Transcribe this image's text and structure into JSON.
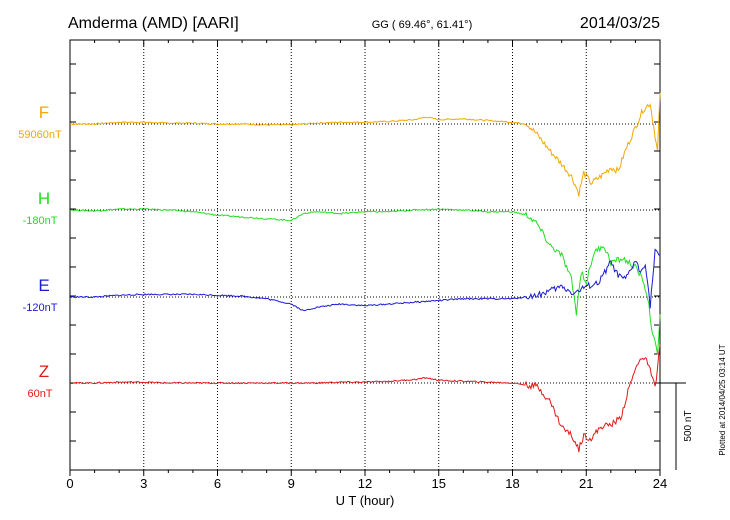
{
  "header": {
    "station": "Amderma (AMD)  [AARI]",
    "coords": "GG ( 69.46°,  61.41°)",
    "date": "2014/03/25"
  },
  "side_note": "Plotted at 2014/04/25 03:14 UT",
  "scale_label": "500 nT",
  "chart_data": {
    "type": "line",
    "xlabel": "U T (hour)",
    "xlim": [
      0,
      24
    ],
    "xticks": [
      0,
      3,
      6,
      9,
      12,
      15,
      18,
      21,
      24
    ],
    "grid": true,
    "series": [
      {
        "name": "F",
        "baseline_label": "59060nT",
        "color": "#f2a900",
        "x": [
          0,
          1,
          2,
          3,
          4,
          5,
          6,
          7,
          8,
          9,
          10,
          11,
          12,
          13,
          14,
          14.5,
          15,
          16,
          17,
          18,
          18.6,
          19,
          19.5,
          20,
          20.4,
          20.7,
          20.9,
          21.2,
          21.6,
          22,
          22.3,
          22.6,
          23,
          23.3,
          23.6,
          23.9,
          24
        ],
        "y": [
          0,
          0,
          10,
          10,
          5,
          5,
          0,
          0,
          -5,
          -5,
          5,
          10,
          10,
          15,
          25,
          40,
          25,
          30,
          20,
          10,
          0,
          -60,
          -150,
          -230,
          -300,
          -400,
          -280,
          -340,
          -300,
          -250,
          -270,
          -150,
          -20,
          80,
          120,
          -160,
          180
        ]
      },
      {
        "name": "H",
        "baseline_label": "-180nT",
        "color": "#22dd22",
        "x": [
          0,
          1,
          2,
          3,
          4,
          5,
          6,
          7,
          8,
          9,
          9.5,
          10,
          11,
          12,
          13,
          14,
          15,
          16,
          17,
          18,
          18.6,
          19,
          19.5,
          20,
          20.4,
          20.6,
          20.8,
          21,
          21.3,
          21.7,
          22,
          22.5,
          23,
          23.3,
          23.5,
          23.7,
          23.9,
          24
        ],
        "y": [
          0,
          -5,
          5,
          5,
          0,
          -10,
          -30,
          -40,
          -50,
          -60,
          -20,
          -10,
          -20,
          -10,
          -10,
          0,
          5,
          0,
          -10,
          -10,
          -30,
          -80,
          -200,
          -260,
          -400,
          -590,
          -350,
          -420,
          -250,
          -200,
          -300,
          -280,
          -330,
          -400,
          -500,
          -720,
          -820,
          -600
        ]
      },
      {
        "name": "E",
        "baseline_label": "-120nT",
        "color": "#1a1ad6",
        "x": [
          0,
          1,
          2,
          3,
          4,
          5,
          6,
          7,
          8,
          9,
          9.5,
          10,
          11,
          12,
          13,
          14,
          15,
          16,
          17,
          18,
          19,
          20,
          20.5,
          21,
          21.5,
          22,
          22.3,
          22.6,
          23,
          23.2,
          23.4,
          23.6,
          23.8,
          24
        ],
        "y": [
          0,
          0,
          10,
          15,
          15,
          15,
          10,
          5,
          -10,
          -40,
          -80,
          -60,
          -40,
          -50,
          -40,
          -30,
          -20,
          -10,
          -10,
          -10,
          10,
          60,
          20,
          60,
          80,
          200,
          120,
          100,
          210,
          140,
          200,
          -50,
          260,
          240
        ]
      },
      {
        "name": "Z",
        "baseline_label": "60nT",
        "color": "#e01818",
        "x": [
          0,
          1,
          2,
          3,
          4,
          5,
          6,
          7,
          8,
          9,
          10,
          11,
          12,
          13,
          14,
          14.5,
          15,
          16,
          17,
          18,
          19,
          19.5,
          20,
          20.4,
          20.7,
          20.9,
          21.2,
          21.6,
          22,
          22.4,
          22.8,
          23.2,
          23.5,
          23.8,
          24
        ],
        "y": [
          0,
          0,
          5,
          5,
          0,
          0,
          0,
          0,
          0,
          0,
          0,
          5,
          5,
          10,
          20,
          30,
          15,
          10,
          5,
          0,
          -20,
          -100,
          -250,
          -300,
          -380,
          -300,
          -320,
          -250,
          -240,
          -200,
          0,
          150,
          120,
          -30,
          220
        ]
      }
    ]
  }
}
